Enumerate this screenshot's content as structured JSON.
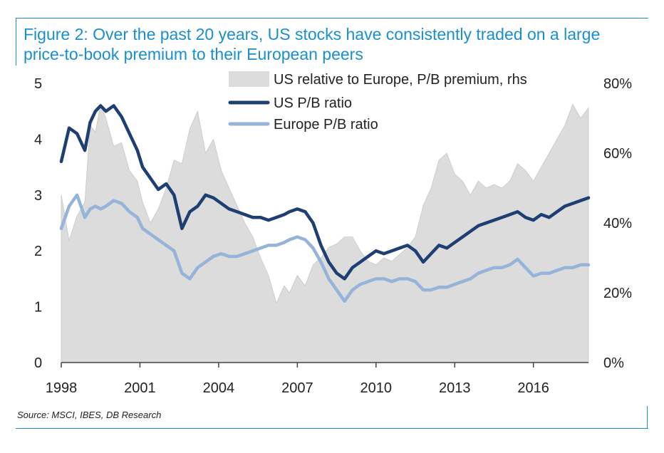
{
  "title": "Figure 2: Over the past 20 years, US stocks have consistently traded on a large price-to-book premium to their European peers",
  "source": "Source: MSCI, IBES, DB Research",
  "chart_data": {
    "type": "line",
    "x_ticks": [
      "1998",
      "2001",
      "2004",
      "2007",
      "2010",
      "2013",
      "2016"
    ],
    "y_left_ticks": [
      "0",
      "1",
      "2",
      "3",
      "4",
      "5"
    ],
    "y_right_ticks": [
      "0%",
      "20%",
      "40%",
      "60%",
      "80%"
    ],
    "ylim_left": [
      0,
      5
    ],
    "ylim_right": [
      0,
      80
    ],
    "xlim": [
      1998.0,
      2018.1
    ],
    "legend_position": "top-center",
    "colors": {
      "premium": "#dcdcdc",
      "us": "#1f3f73",
      "europe": "#96b4d9"
    },
    "series": [
      {
        "name": "US relative to Europe, P/B premium, rhs",
        "axis": "right",
        "kind": "area",
        "x": [
          1998.0,
          1998.3,
          1998.6,
          1998.9,
          1999.1,
          1999.3,
          1999.5,
          1999.7,
          2000.0,
          2000.3,
          2000.6,
          2000.9,
          2001.1,
          2001.4,
          2001.7,
          2002.0,
          2002.3,
          2002.6,
          2002.9,
          2003.2,
          2003.5,
          2003.8,
          2004.1,
          2004.4,
          2004.7,
          2005.0,
          2005.3,
          2005.6,
          2005.9,
          2006.2,
          2006.5,
          2006.7,
          2007.0,
          2007.3,
          2007.6,
          2007.9,
          2008.2,
          2008.5,
          2008.8,
          2009.1,
          2009.4,
          2009.7,
          2010.0,
          2010.3,
          2010.6,
          2010.9,
          2011.2,
          2011.5,
          2011.8,
          2012.1,
          2012.4,
          2012.7,
          2013.0,
          2013.3,
          2013.6,
          2013.9,
          2014.2,
          2014.5,
          2014.8,
          2015.1,
          2015.4,
          2015.7,
          2016.0,
          2016.3,
          2016.6,
          2016.9,
          2017.2,
          2017.5,
          2017.8,
          2018.1
        ],
        "values": [
          48,
          35,
          42,
          46,
          68,
          66,
          74,
          70,
          62,
          63,
          55,
          52,
          46,
          40,
          44,
          50,
          58,
          57,
          67,
          72,
          60,
          64,
          55,
          50,
          45,
          40,
          36,
          30,
          25,
          17,
          22,
          20,
          25,
          22,
          28,
          30,
          33,
          34,
          36,
          36,
          32,
          29,
          28,
          30,
          29,
          31,
          33,
          36,
          45,
          50,
          58,
          60,
          54,
          52,
          48,
          52,
          50,
          51,
          50,
          52,
          57,
          55,
          52,
          56,
          60,
          64,
          68,
          74,
          70,
          73
        ]
      },
      {
        "name": "US P/B ratio",
        "axis": "left",
        "kind": "line",
        "x": [
          1998.0,
          1998.3,
          1998.6,
          1998.9,
          1999.1,
          1999.3,
          1999.5,
          1999.7,
          2000.0,
          2000.3,
          2000.6,
          2000.9,
          2001.1,
          2001.4,
          2001.7,
          2002.0,
          2002.3,
          2002.6,
          2002.9,
          2003.2,
          2003.5,
          2003.8,
          2004.1,
          2004.4,
          2004.7,
          2005.0,
          2005.3,
          2005.6,
          2005.9,
          2006.2,
          2006.5,
          2006.7,
          2007.0,
          2007.3,
          2007.6,
          2007.9,
          2008.2,
          2008.5,
          2008.8,
          2009.1,
          2009.4,
          2009.7,
          2010.0,
          2010.3,
          2010.6,
          2010.9,
          2011.2,
          2011.5,
          2011.8,
          2012.1,
          2012.4,
          2012.7,
          2013.0,
          2013.3,
          2013.6,
          2013.9,
          2014.2,
          2014.5,
          2014.8,
          2015.1,
          2015.4,
          2015.7,
          2016.0,
          2016.3,
          2016.6,
          2016.9,
          2017.2,
          2017.5,
          2017.8,
          2018.1
        ],
        "values": [
          3.6,
          4.2,
          4.1,
          3.8,
          4.3,
          4.5,
          4.6,
          4.5,
          4.6,
          4.4,
          4.1,
          3.8,
          3.5,
          3.3,
          3.1,
          3.2,
          3.0,
          2.4,
          2.7,
          2.8,
          3.0,
          2.95,
          2.85,
          2.75,
          2.7,
          2.65,
          2.6,
          2.6,
          2.55,
          2.6,
          2.65,
          2.7,
          2.75,
          2.7,
          2.5,
          2.1,
          1.8,
          1.6,
          1.5,
          1.7,
          1.8,
          1.9,
          2.0,
          1.95,
          2.0,
          2.05,
          2.1,
          2.0,
          1.8,
          1.95,
          2.1,
          2.05,
          2.15,
          2.25,
          2.35,
          2.45,
          2.5,
          2.55,
          2.6,
          2.65,
          2.7,
          2.6,
          2.55,
          2.65,
          2.6,
          2.7,
          2.8,
          2.85,
          2.9,
          2.95
        ]
      },
      {
        "name": "Europe P/B ratio",
        "axis": "left",
        "kind": "line",
        "x": [
          1998.0,
          1998.3,
          1998.6,
          1998.9,
          1999.1,
          1999.3,
          1999.5,
          1999.7,
          2000.0,
          2000.3,
          2000.6,
          2000.9,
          2001.1,
          2001.4,
          2001.7,
          2002.0,
          2002.3,
          2002.6,
          2002.9,
          2003.2,
          2003.5,
          2003.8,
          2004.1,
          2004.4,
          2004.7,
          2005.0,
          2005.3,
          2005.6,
          2005.9,
          2006.2,
          2006.5,
          2006.7,
          2007.0,
          2007.3,
          2007.6,
          2007.9,
          2008.2,
          2008.5,
          2008.8,
          2009.1,
          2009.4,
          2009.7,
          2010.0,
          2010.3,
          2010.6,
          2010.9,
          2011.2,
          2011.5,
          2011.8,
          2012.1,
          2012.4,
          2012.7,
          2013.0,
          2013.3,
          2013.6,
          2013.9,
          2014.2,
          2014.5,
          2014.8,
          2015.1,
          2015.4,
          2015.7,
          2016.0,
          2016.3,
          2016.6,
          2016.9,
          2017.2,
          2017.5,
          2017.8,
          2018.1
        ],
        "values": [
          2.4,
          2.8,
          3.0,
          2.6,
          2.75,
          2.8,
          2.75,
          2.8,
          2.9,
          2.85,
          2.7,
          2.6,
          2.4,
          2.3,
          2.2,
          2.1,
          2.0,
          1.6,
          1.5,
          1.7,
          1.8,
          1.9,
          1.95,
          1.9,
          1.9,
          1.95,
          2.0,
          2.05,
          2.1,
          2.1,
          2.15,
          2.2,
          2.25,
          2.2,
          2.05,
          1.8,
          1.5,
          1.3,
          1.1,
          1.3,
          1.4,
          1.45,
          1.5,
          1.5,
          1.45,
          1.5,
          1.5,
          1.45,
          1.3,
          1.3,
          1.35,
          1.35,
          1.4,
          1.45,
          1.5,
          1.6,
          1.65,
          1.7,
          1.7,
          1.75,
          1.85,
          1.7,
          1.55,
          1.6,
          1.6,
          1.65,
          1.7,
          1.7,
          1.75,
          1.75
        ]
      }
    ]
  }
}
